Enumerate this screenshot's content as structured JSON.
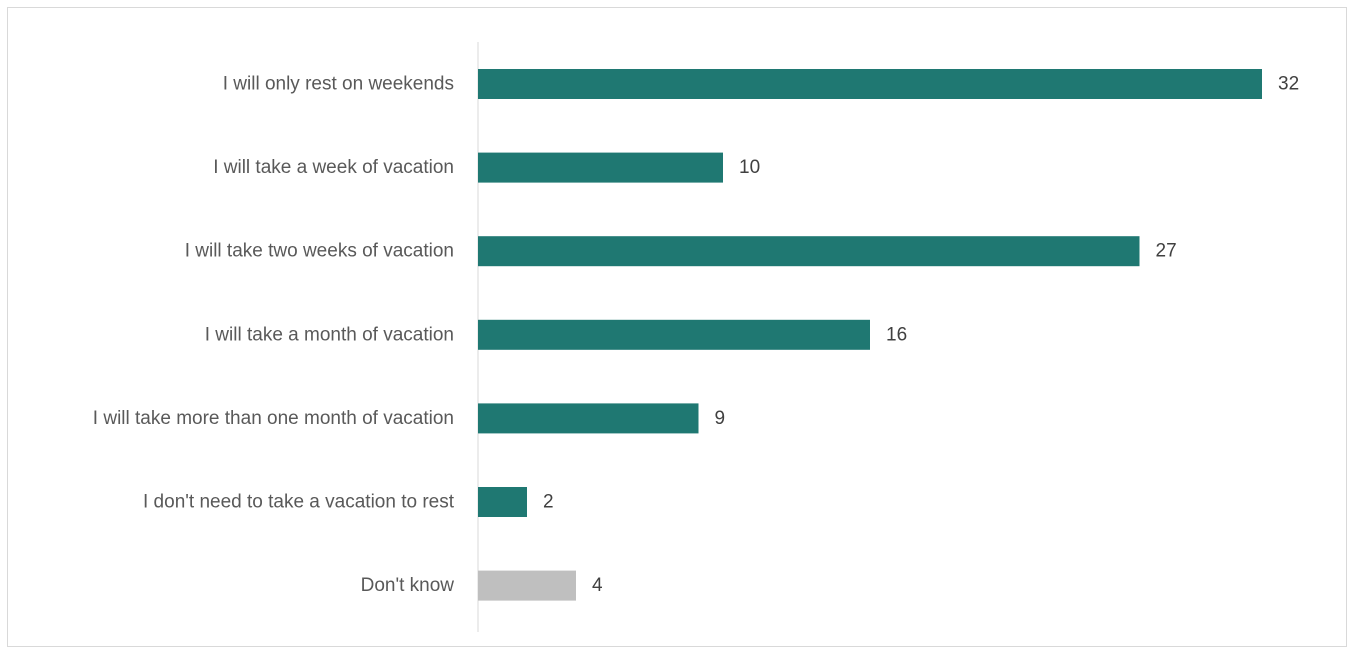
{
  "chart_data": {
    "type": "bar",
    "orientation": "horizontal",
    "title": "",
    "xlabel": "",
    "ylabel": "",
    "categories": [
      "I will only rest on weekends",
      "I will take a week of vacation",
      "I will take two weeks of vacation",
      "I will take a month of vacation",
      "I will take more than one month of vacation",
      "I don't need to take a vacation to rest",
      "Don't know"
    ],
    "values": [
      32,
      10,
      27,
      16,
      9,
      2,
      4
    ],
    "bar_colors": [
      "#1f7872",
      "#1f7872",
      "#1f7872",
      "#1f7872",
      "#1f7872",
      "#1f7872",
      "#bfbfbf"
    ],
    "xlim": [
      0,
      32
    ],
    "grid": false,
    "legend": "none",
    "data_labels": true
  }
}
